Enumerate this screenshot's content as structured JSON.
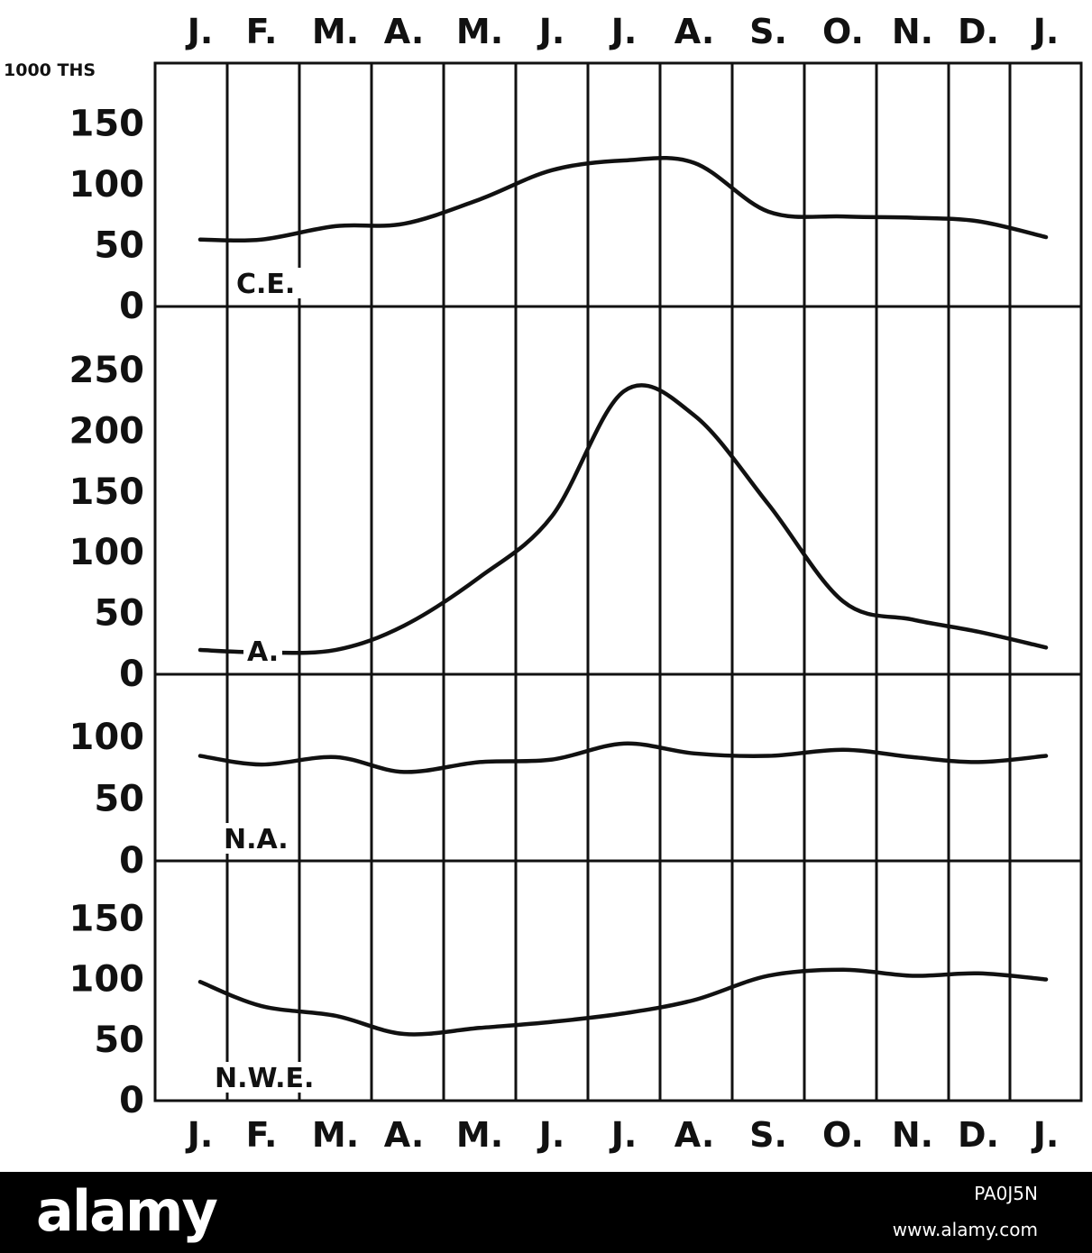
{
  "chart_data": {
    "type": "line",
    "unit_label": "1000 THS",
    "months": [
      "J.",
      "F.",
      "M.",
      "A.",
      "M.",
      "J.",
      "J.",
      "A.",
      "S.",
      "O.",
      "N.",
      "D.",
      "J."
    ],
    "panels": [
      {
        "label": "C.E.",
        "ylim": [
          0,
          150
        ],
        "ticks": [
          "150",
          "100",
          "50",
          "0"
        ],
        "values": [
          55,
          55,
          66,
          68,
          88,
          112,
          120,
          118,
          78,
          74,
          73,
          70,
          57
        ]
      },
      {
        "label": "A.",
        "ylim": [
          0,
          250
        ],
        "ticks": [
          "250",
          "200",
          "150",
          "100",
          "50",
          "0"
        ],
        "values": [
          20,
          18,
          20,
          40,
          80,
          130,
          233,
          213,
          140,
          60,
          45,
          35,
          22
        ]
      },
      {
        "label": "N.A.",
        "ylim": [
          0,
          100
        ],
        "ticks": [
          "100",
          "50",
          "0"
        ],
        "values": [
          85,
          78,
          84,
          72,
          80,
          82,
          95,
          87,
          85,
          90,
          84,
          80,
          85
        ]
      },
      {
        "label": "N.W.E.",
        "ylim": [
          0,
          150
        ],
        "ticks": [
          "150",
          "100",
          "50",
          "0"
        ],
        "values": [
          98,
          78,
          70,
          55,
          60,
          65,
          72,
          83,
          103,
          108,
          103,
          105,
          100
        ]
      }
    ]
  },
  "footer": {
    "logo": "alamy",
    "image_id": "PA0J5N",
    "site": "www.alamy.com"
  }
}
